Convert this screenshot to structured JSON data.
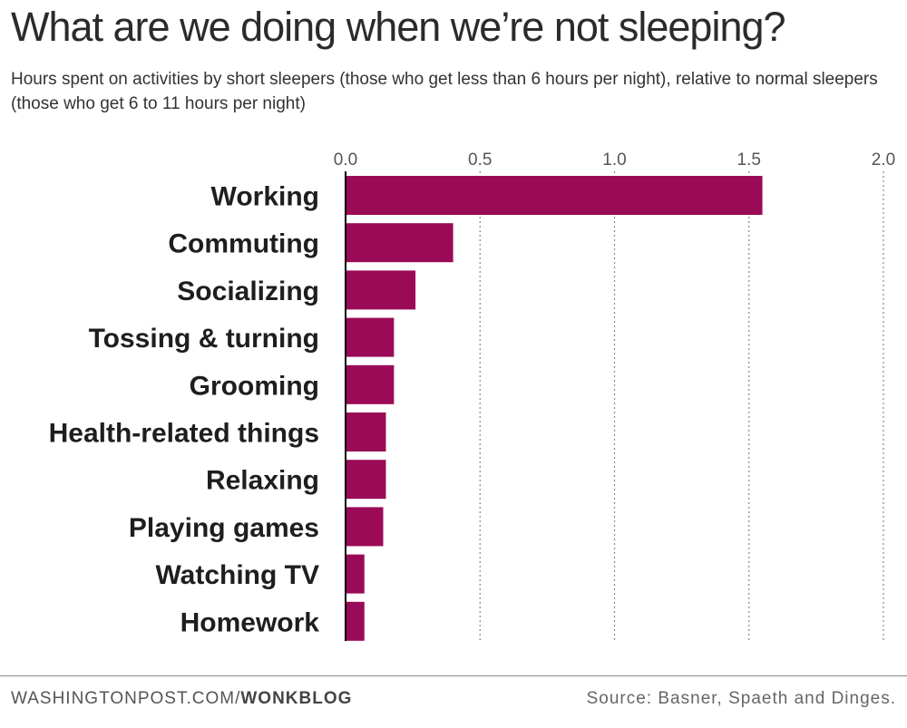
{
  "header": {
    "title": "What are we doing when we’re not sleeping?",
    "subtitle": "Hours spent on activities by short sleepers (those who get less than 6 hours per night), relative to normal sleepers (those who get 6 to 11 hours per night)"
  },
  "footer": {
    "site": "WASHINGTONPOST.COM/",
    "section": "WONKBLOG",
    "source": "Source: Basner, Spaeth and Dinges."
  },
  "colors": {
    "bar": "#9b0a57",
    "axis": "#000000",
    "grid": "#888888"
  },
  "chart_data": {
    "type": "bar",
    "orientation": "horizontal",
    "categories": [
      "Working",
      "Commuting",
      "Socializing",
      "Tossing & turning",
      "Grooming",
      "Health-related things",
      "Relaxing",
      "Playing games",
      "Watching TV",
      "Homework"
    ],
    "values": [
      1.55,
      0.4,
      0.26,
      0.18,
      0.18,
      0.15,
      0.15,
      0.14,
      0.07,
      0.07
    ],
    "xlim": [
      0,
      2.0
    ],
    "xticks": [
      0.0,
      0.5,
      1.0,
      1.5,
      2.0
    ],
    "xtick_labels": [
      "0.0",
      "0.5",
      "1.0",
      "1.5",
      "2.0"
    ],
    "grid": "dotted vertical",
    "legend": "none"
  }
}
